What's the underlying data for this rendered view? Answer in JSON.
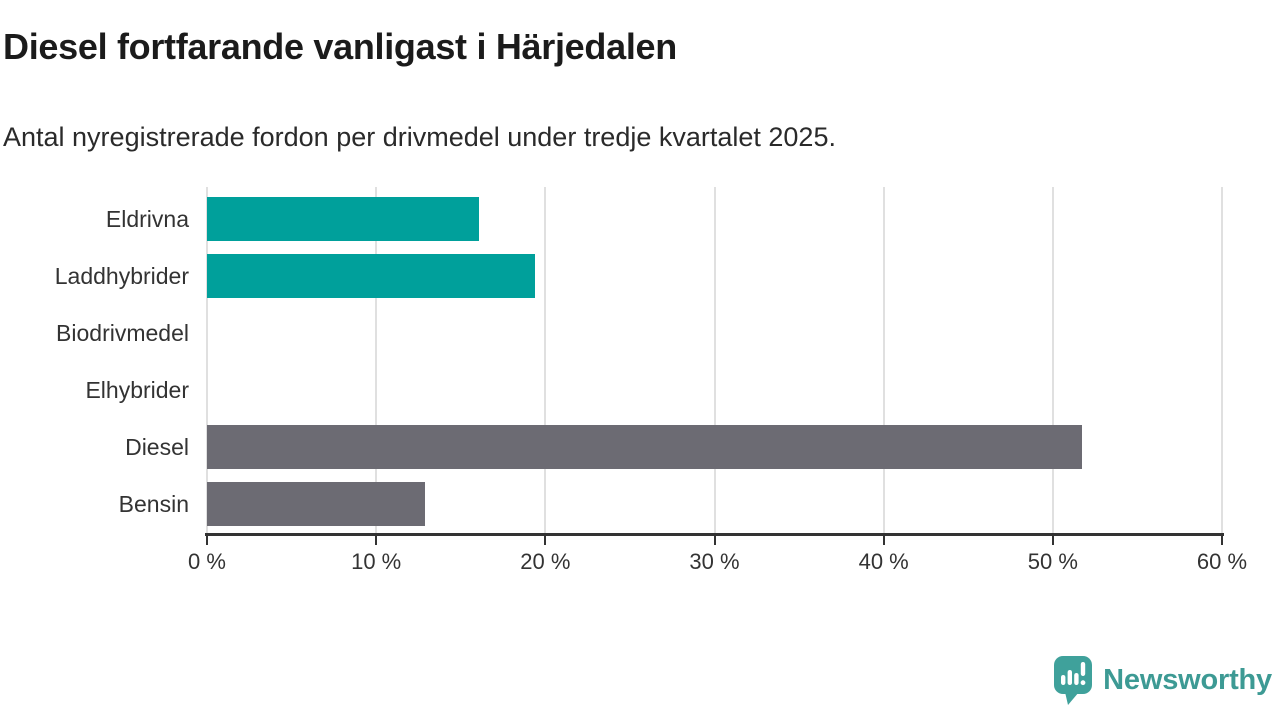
{
  "title": "Diesel fortfarande vanligast i Härjedalen",
  "subtitle": "Antal nyregistrerade fordon per drivmedel under tredje kvartalet 2025.",
  "colors": {
    "teal_bar": "#00a09b",
    "gray_bar": "#6c6b73",
    "axis": "#333333",
    "gridline": "#e0e0e0",
    "title_text": "#1b1b1b",
    "logo_teal": "#3d9a94"
  },
  "chart_data": {
    "type": "bar",
    "orientation": "horizontal",
    "title": "Diesel fortfarande vanligast i Härjedalen",
    "subtitle": "Antal nyregistrerade fordon per drivmedel under tredje kvartalet 2025.",
    "categories": [
      "Eldrivna",
      "Laddhybrider",
      "Biodrivmedel",
      "Elhybrider",
      "Diesel",
      "Bensin"
    ],
    "values": [
      16.1,
      19.4,
      0,
      0,
      51.7,
      12.9
    ],
    "unit": "%",
    "bar_colors": [
      "#00a09b",
      "#00a09b",
      "#00a09b",
      "#00a09b",
      "#6c6b73",
      "#6c6b73"
    ],
    "xlim": [
      0,
      60
    ],
    "xticks": [
      0,
      10,
      20,
      30,
      40,
      50,
      60
    ],
    "xtick_labels": [
      "0 %",
      "10 %",
      "20 %",
      "30 %",
      "40 %",
      "50 %",
      "60 %"
    ],
    "grid": "vertical-only",
    "legend": "none",
    "value_labels": "none"
  },
  "footer": {
    "brand": "Newsworthy"
  }
}
